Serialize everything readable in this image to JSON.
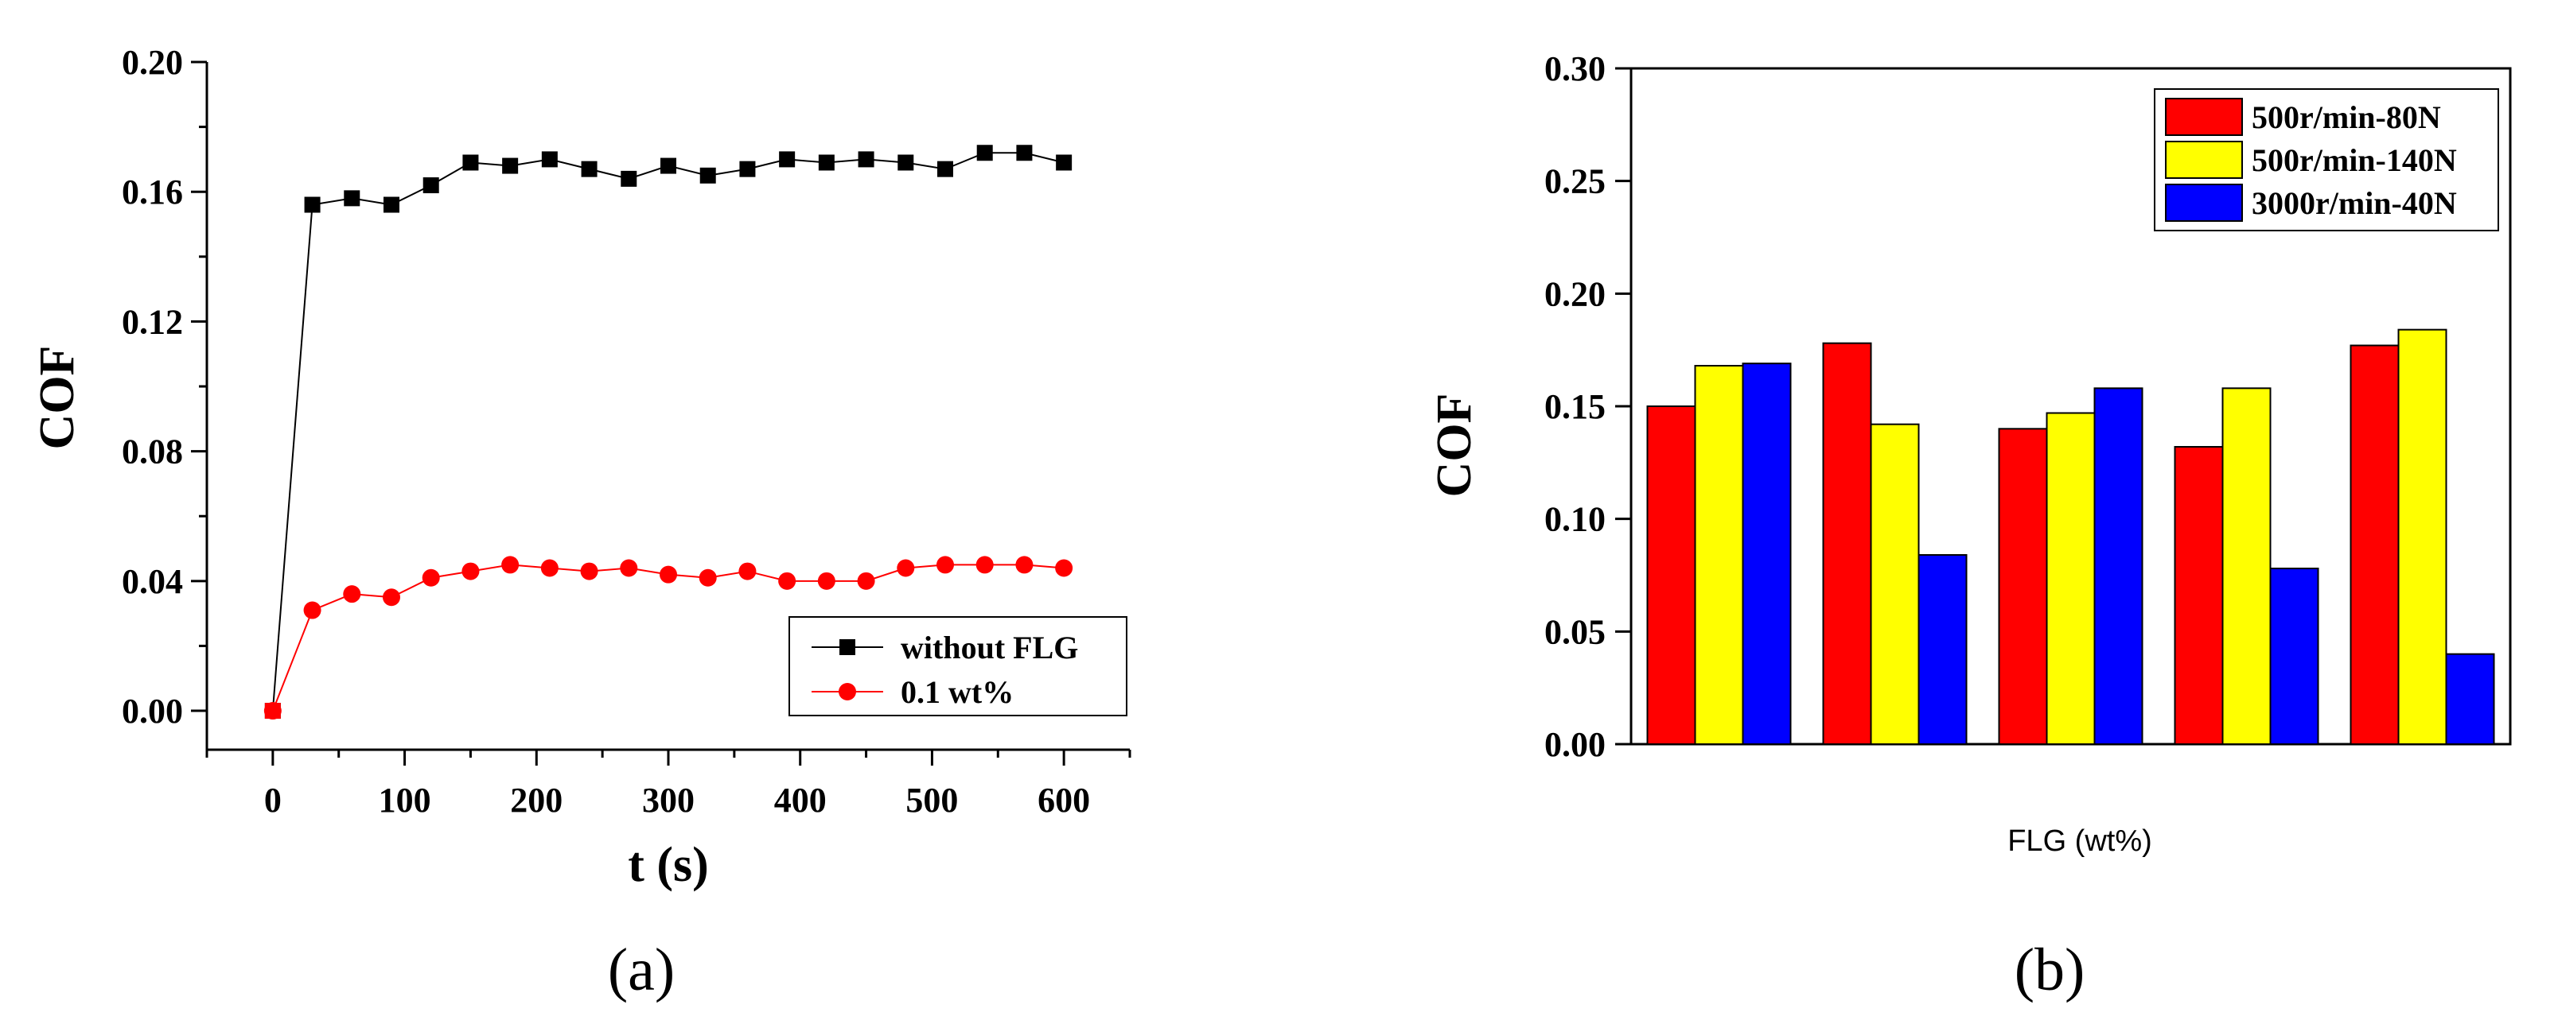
{
  "chart_data": [
    {
      "type": "line",
      "panel": "(a)",
      "xlabel": "t (s)",
      "ylabel": "COF",
      "xlim": [
        -50,
        650
      ],
      "ylim": [
        -0.012,
        0.2
      ],
      "xticks": [
        0,
        100,
        200,
        300,
        400,
        500,
        600
      ],
      "yticks": [
        0.0,
        0.04,
        0.08,
        0.12,
        0.16,
        0.2
      ],
      "xtick_labels": [
        "0",
        "100",
        "200",
        "300",
        "400",
        "500",
        "600"
      ],
      "ytick_labels": [
        "0.00",
        "0.04",
        "0.08",
        "0.12",
        "0.16",
        "0.20"
      ],
      "legend_position": "bottom-right",
      "x": [
        0,
        30,
        60,
        90,
        120,
        150,
        180,
        210,
        240,
        270,
        300,
        330,
        360,
        390,
        420,
        450,
        480,
        510,
        540,
        570,
        600
      ],
      "series": [
        {
          "name": "without FLG",
          "color": "#000000",
          "marker": "square",
          "values": [
            0.0,
            0.156,
            0.158,
            0.156,
            0.162,
            0.169,
            0.168,
            0.17,
            0.167,
            0.164,
            0.168,
            0.165,
            0.167,
            0.17,
            0.169,
            0.17,
            0.169,
            0.167,
            0.172,
            0.172,
            0.169
          ]
        },
        {
          "name": "0.1 wt%",
          "color": "#ff0000",
          "marker": "circle",
          "values": [
            0.0,
            0.031,
            0.036,
            0.035,
            0.041,
            0.043,
            0.045,
            0.044,
            0.043,
            0.044,
            0.042,
            0.041,
            0.043,
            0.04,
            0.04,
            0.04,
            0.044,
            0.045,
            0.045,
            0.045,
            0.044
          ]
        }
      ]
    },
    {
      "type": "bar",
      "panel": "(b)",
      "xlabel": "FLG (wt%)",
      "ylabel": "COF",
      "ylim": [
        0,
        0.3
      ],
      "yticks": [
        0.0,
        0.05,
        0.1,
        0.15,
        0.2,
        0.25,
        0.3
      ],
      "ytick_labels": [
        "0.00",
        "0.05",
        "0.10",
        "0.15",
        "0.20",
        "0.25",
        "0.30"
      ],
      "categories": [
        "",
        "",
        "",
        "",
        ""
      ],
      "legend_position": "top-right",
      "series": [
        {
          "name": "500r/min-80N",
          "color": "#ff0000",
          "values": [
            0.15,
            0.178,
            0.14,
            0.132,
            0.177
          ]
        },
        {
          "name": "500r/min-140N",
          "color": "#ffff00",
          "values": [
            0.168,
            0.142,
            0.147,
            0.158,
            0.184
          ]
        },
        {
          "name": "3000r/min-40N",
          "color": "#0000ff",
          "values": [
            0.169,
            0.084,
            0.158,
            0.078,
            0.04
          ]
        }
      ]
    }
  ]
}
